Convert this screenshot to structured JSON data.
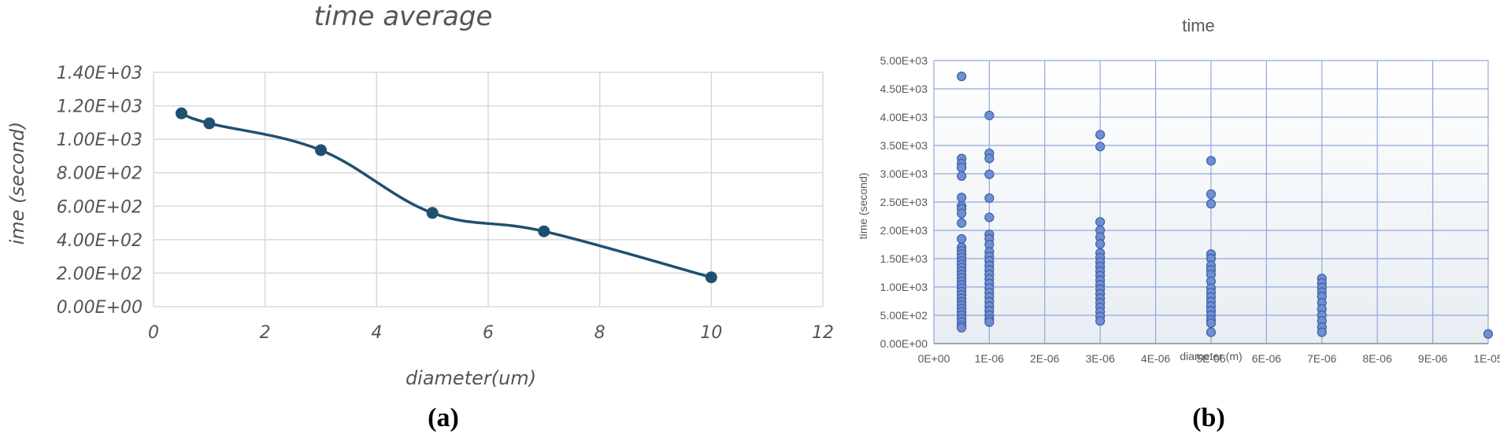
{
  "panels": {
    "a": {
      "caption": "(a)"
    },
    "b": {
      "caption": "(b)"
    }
  },
  "colors": {
    "line_a": "#1f5070",
    "point_b": "#6f8fd0",
    "point_b_stroke": "#3f5fa8",
    "grid": "#d9d9d9",
    "grid_b": "#8fa8d8"
  },
  "chart_data": [
    {
      "type": "line",
      "title": "time average",
      "xlabel": "diameter(um)",
      "ylabel": "ime (second)",
      "xlim": [
        0,
        12
      ],
      "ylim": [
        0,
        1400
      ],
      "xticks": [
        "0",
        "2",
        "4",
        "6",
        "8",
        "10",
        "12"
      ],
      "yticks": [
        "0.00E+00",
        "2.00E+02",
        "4.00E+02",
        "6.00E+02",
        "8.00E+02",
        "1.00E+03",
        "1.20E+03",
        "1.40E+03"
      ],
      "grid": true,
      "smooth": true,
      "series": [
        {
          "x": [
            0.5,
            1,
            3,
            5,
            7,
            10
          ],
          "y": [
            1155,
            1095,
            935,
            560,
            450,
            175
          ]
        }
      ]
    },
    {
      "type": "scatter",
      "title": "time",
      "xlabel": "diameter (m)",
      "ylabel": "time (second)",
      "xlim": [
        0,
        1e-05
      ],
      "ylim": [
        0,
        5000
      ],
      "xticks": [
        "0E+00",
        "1E-06",
        "2E-06",
        "3E-06",
        "4E-06",
        "5E-06",
        "6E-06",
        "7E-06",
        "8E-06",
        "9E-06",
        "1E-05"
      ],
      "yticks": [
        "0.00E+00",
        "5.00E+02",
        "1.00E+03",
        "1.50E+03",
        "2.00E+03",
        "2.50E+03",
        "3.00E+03",
        "3.50E+03",
        "4.00E+03",
        "4.50E+03",
        "5.00E+03"
      ],
      "grid": true,
      "series": [
        {
          "points": [
            [
              5e-07,
              4720
            ],
            [
              5e-07,
              3270
            ],
            [
              5e-07,
              3180
            ],
            [
              5e-07,
              3110
            ],
            [
              5e-07,
              2960
            ],
            [
              5e-07,
              2580
            ],
            [
              5e-07,
              2430
            ],
            [
              5e-07,
              2380
            ],
            [
              5e-07,
              2300
            ],
            [
              5e-07,
              2130
            ],
            [
              5e-07,
              1850
            ],
            [
              5e-07,
              1700
            ],
            [
              5e-07,
              1640
            ],
            [
              5e-07,
              1580
            ],
            [
              5e-07,
              1520
            ],
            [
              5e-07,
              1460
            ],
            [
              5e-07,
              1400
            ],
            [
              5e-07,
              1340
            ],
            [
              5e-07,
              1280
            ],
            [
              5e-07,
              1220
            ],
            [
              5e-07,
              1160
            ],
            [
              5e-07,
              1100
            ],
            [
              5e-07,
              1040
            ],
            [
              5e-07,
              980
            ],
            [
              5e-07,
              920
            ],
            [
              5e-07,
              860
            ],
            [
              5e-07,
              800
            ],
            [
              5e-07,
              740
            ],
            [
              5e-07,
              680
            ],
            [
              5e-07,
              620
            ],
            [
              5e-07,
              560
            ],
            [
              5e-07,
              500
            ],
            [
              5e-07,
              440
            ],
            [
              5e-07,
              380
            ],
            [
              5e-07,
              320
            ],
            [
              5e-07,
              280
            ],
            [
              1e-06,
              4030
            ],
            [
              1e-06,
              3360
            ],
            [
              1e-06,
              3270
            ],
            [
              1e-06,
              2990
            ],
            [
              1e-06,
              2570
            ],
            [
              1e-06,
              2230
            ],
            [
              1e-06,
              1930
            ],
            [
              1e-06,
              1850
            ],
            [
              1e-06,
              1750
            ],
            [
              1e-06,
              1620
            ],
            [
              1e-06,
              1540
            ],
            [
              1e-06,
              1460
            ],
            [
              1e-06,
              1380
            ],
            [
              1e-06,
              1300
            ],
            [
              1e-06,
              1220
            ],
            [
              1e-06,
              1140
            ],
            [
              1e-06,
              1060
            ],
            [
              1e-06,
              980
            ],
            [
              1e-06,
              900
            ],
            [
              1e-06,
              820
            ],
            [
              1e-06,
              740
            ],
            [
              1e-06,
              660
            ],
            [
              1e-06,
              580
            ],
            [
              1e-06,
              500
            ],
            [
              1e-06,
              430
            ],
            [
              1e-06,
              380
            ],
            [
              3e-06,
              3690
            ],
            [
              3e-06,
              3480
            ],
            [
              3e-06,
              2150
            ],
            [
              3e-06,
              2000
            ],
            [
              3e-06,
              1880
            ],
            [
              3e-06,
              1760
            ],
            [
              3e-06,
              1600
            ],
            [
              3e-06,
              1520
            ],
            [
              3e-06,
              1440
            ],
            [
              3e-06,
              1360
            ],
            [
              3e-06,
              1280
            ],
            [
              3e-06,
              1200
            ],
            [
              3e-06,
              1120
            ],
            [
              3e-06,
              1040
            ],
            [
              3e-06,
              960
            ],
            [
              3e-06,
              880
            ],
            [
              3e-06,
              800
            ],
            [
              3e-06,
              720
            ],
            [
              3e-06,
              640
            ],
            [
              3e-06,
              560
            ],
            [
              3e-06,
              480
            ],
            [
              3e-06,
              400
            ],
            [
              5e-06,
              3230
            ],
            [
              5e-06,
              2640
            ],
            [
              5e-06,
              2470
            ],
            [
              5e-06,
              1580
            ],
            [
              5e-06,
              1500
            ],
            [
              5e-06,
              1380
            ],
            [
              5e-06,
              1300
            ],
            [
              5e-06,
              1220
            ],
            [
              5e-06,
              1100
            ],
            [
              5e-06,
              980
            ],
            [
              5e-06,
              900
            ],
            [
              5e-06,
              820
            ],
            [
              5e-06,
              740
            ],
            [
              5e-06,
              660
            ],
            [
              5e-06,
              580
            ],
            [
              5e-06,
              500
            ],
            [
              5e-06,
              420
            ],
            [
              5e-06,
              360
            ],
            [
              5e-06,
              200
            ],
            [
              7e-06,
              1150
            ],
            [
              7e-06,
              1070
            ],
            [
              7e-06,
              990
            ],
            [
              7e-06,
              910
            ],
            [
              7e-06,
              830
            ],
            [
              7e-06,
              720
            ],
            [
              7e-06,
              610
            ],
            [
              7e-06,
              500
            ],
            [
              7e-06,
              400
            ],
            [
              7e-06,
              290
            ],
            [
              7e-06,
              200
            ],
            [
              1e-05,
              170
            ]
          ]
        }
      ]
    }
  ]
}
